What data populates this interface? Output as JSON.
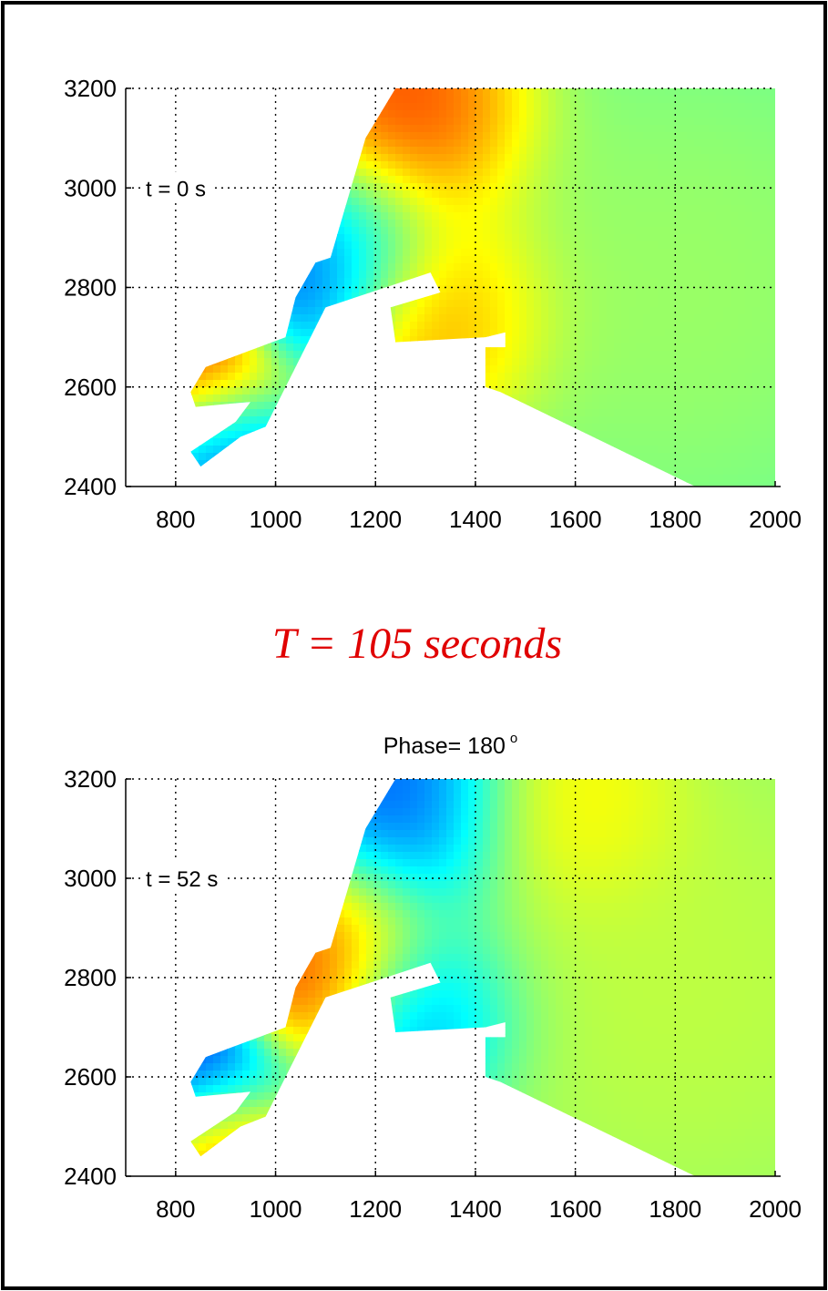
{
  "center_title": "T  =  105  seconds",
  "chart_data": [
    {
      "type": "heatmap",
      "title": "",
      "annotation": "t = 0 s",
      "xlim": [
        700,
        2000
      ],
      "ylim": [
        2400,
        3200
      ],
      "xticks": [
        800,
        1000,
        1200,
        1400,
        1600,
        1800,
        2000
      ],
      "yticks": [
        2400,
        2600,
        2800,
        3000,
        3200
      ],
      "grid": true,
      "colormap": "jet",
      "field": {
        "background": 0.45,
        "hotspots": [
          {
            "x": 1260,
            "y": 3150,
            "value": 0.92,
            "radius": 200
          },
          {
            "x": 1130,
            "y": 2880,
            "value": 0.2,
            "radius": 170
          },
          {
            "x": 1060,
            "y": 2790,
            "value": 0.15,
            "radius": 120
          },
          {
            "x": 1310,
            "y": 2740,
            "value": 0.82,
            "radius": 190
          },
          {
            "x": 860,
            "y": 2630,
            "value": 1.0,
            "radius": 140
          },
          {
            "x": 900,
            "y": 2500,
            "value": 0.1,
            "radius": 130
          },
          {
            "x": 1800,
            "y": 2800,
            "value": 0.55,
            "radius": 400
          }
        ]
      }
    },
    {
      "type": "heatmap",
      "title": "Phase= 180",
      "title_degree": "o",
      "annotation": "t = 52 s",
      "xlim": [
        700,
        2000
      ],
      "ylim": [
        2400,
        3200
      ],
      "xticks": [
        800,
        1000,
        1200,
        1400,
        1600,
        1800,
        2000
      ],
      "yticks": [
        2400,
        2600,
        2800,
        3000,
        3200
      ],
      "grid": true,
      "colormap": "jet",
      "field": {
        "background": 0.5,
        "hotspots": [
          {
            "x": 1250,
            "y": 3150,
            "value": 0.12,
            "radius": 200
          },
          {
            "x": 1590,
            "y": 3150,
            "value": 0.68,
            "radius": 180
          },
          {
            "x": 1120,
            "y": 2860,
            "value": 0.85,
            "radius": 170
          },
          {
            "x": 1060,
            "y": 2780,
            "value": 0.88,
            "radius": 120
          },
          {
            "x": 1270,
            "y": 2720,
            "value": 0.18,
            "radius": 170
          },
          {
            "x": 860,
            "y": 2610,
            "value": 0.0,
            "radius": 140
          },
          {
            "x": 900,
            "y": 2480,
            "value": 0.9,
            "radius": 130
          },
          {
            "x": 1800,
            "y": 2800,
            "value": 0.58,
            "radius": 400
          }
        ]
      }
    }
  ]
}
